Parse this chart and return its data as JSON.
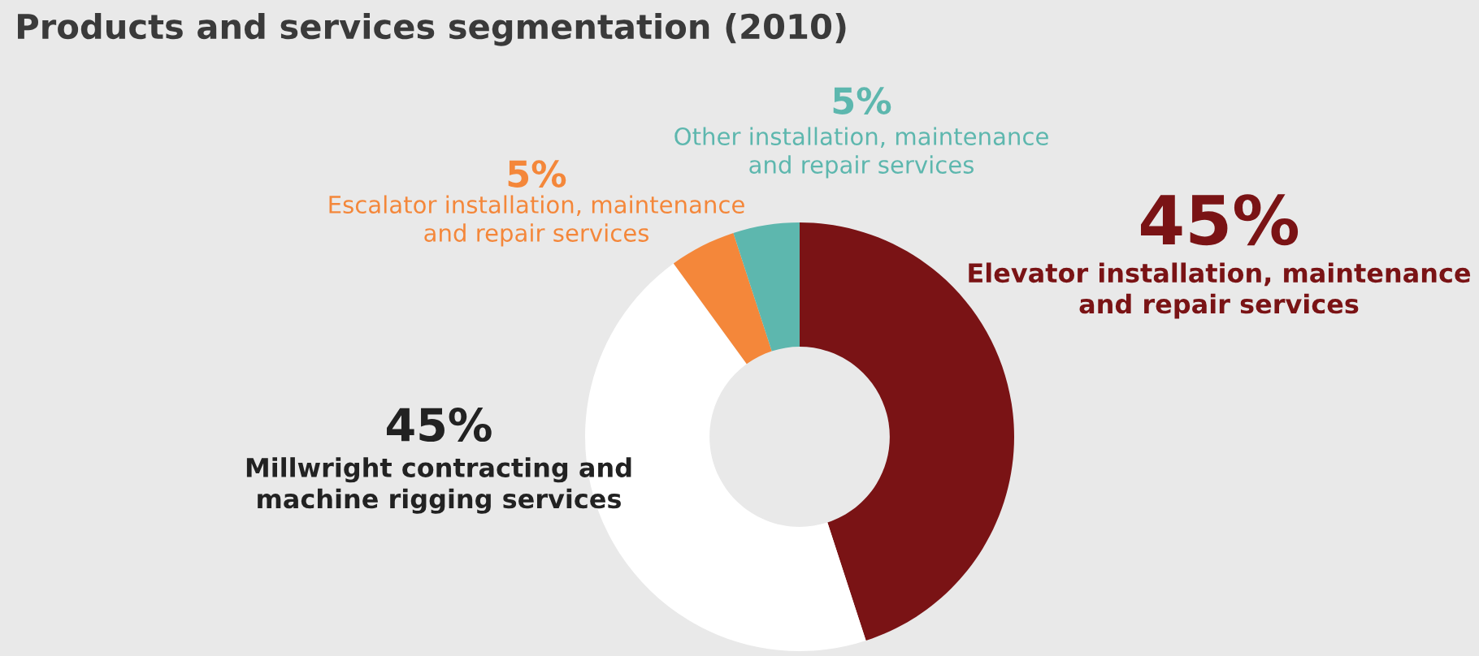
{
  "chart_data": {
    "type": "donut",
    "title": "Products and services segmentation (2010)",
    "categories": [
      "Elevator installation, maintenance\nand repair services",
      "Millwright contracting and\nmachine rigging services",
      "Escalator installation, maintenance\nand repair services",
      "Other installation, maintenance\nand repair services"
    ],
    "values": [
      45,
      45,
      5,
      5
    ],
    "value_labels": [
      "45%",
      "45%",
      "5%",
      "5%"
    ],
    "colors": [
      "#7a1315",
      "#ffffff",
      "#f4873a",
      "#5db7ae"
    ],
    "legend": false
  }
}
